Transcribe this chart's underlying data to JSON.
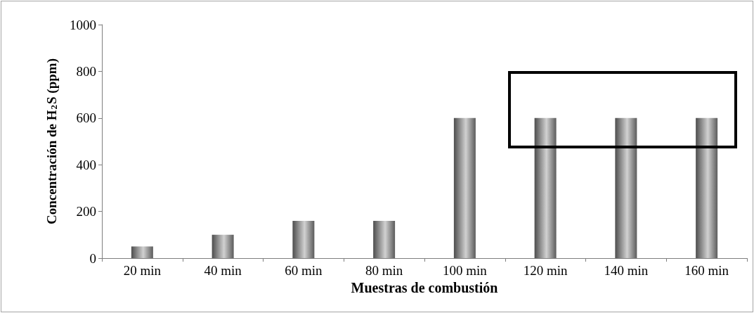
{
  "chart_data": {
    "type": "bar",
    "xlabel": "Muestras de combustión",
    "ylabel": "Concentración de H$_{2}$S (ppm)",
    "categories": [
      "20 min",
      "40 min",
      "60 min",
      "80 min",
      "100 min",
      "120 min",
      "140 min",
      "160 min"
    ],
    "values": [
      50,
      100,
      160,
      160,
      600,
      600,
      600,
      600
    ],
    "color": "#8c8c8c",
    "ylim": [
      0,
      1000
    ],
    "yticks": [
      0,
      200,
      400,
      600,
      800,
      1000
    ],
    "grid": false
  }
}
